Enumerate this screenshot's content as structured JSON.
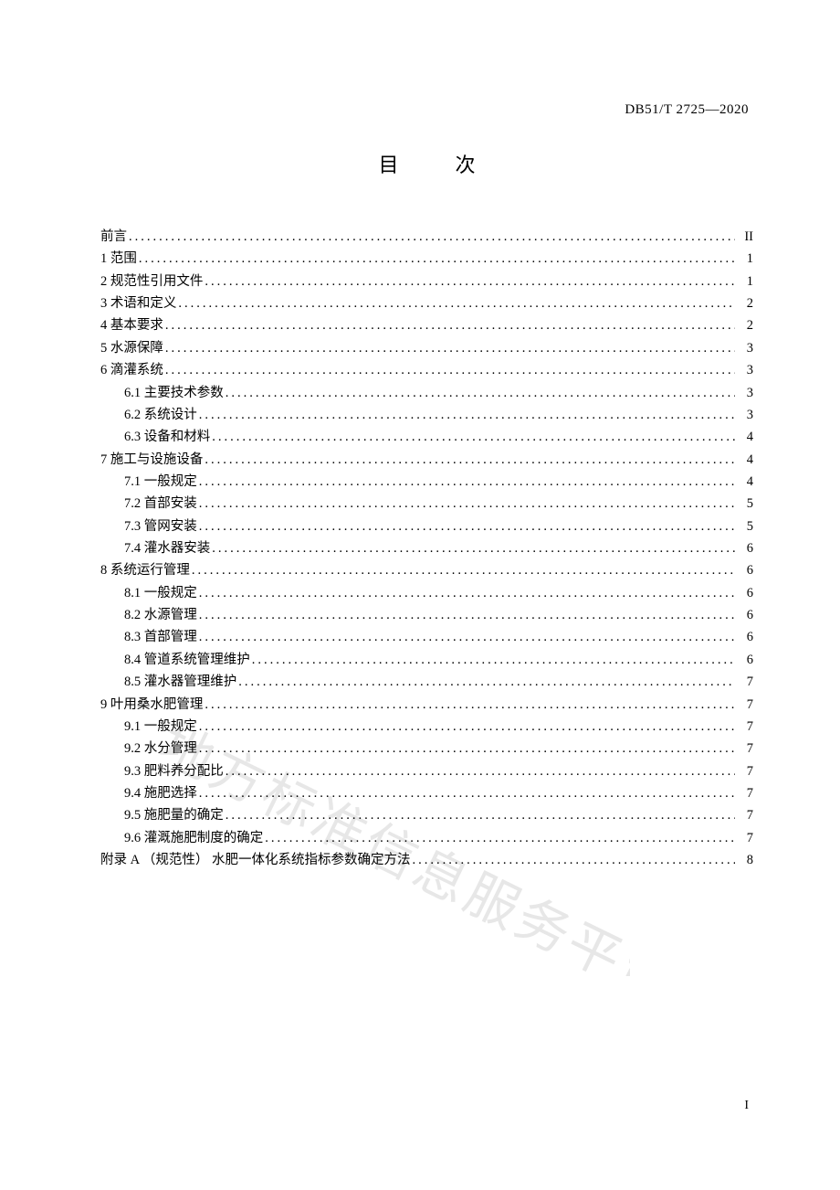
{
  "header": {
    "standard_code": "DB51/T 2725—2020"
  },
  "title": "目    次",
  "watermark_text": "地方标准信息服务平台",
  "page_number": "I",
  "toc": [
    {
      "level": 0,
      "label": "前言",
      "page": "II"
    },
    {
      "level": 0,
      "label": "1 范围",
      "page": "1"
    },
    {
      "level": 0,
      "label": "2 规范性引用文件",
      "page": "1"
    },
    {
      "level": 0,
      "label": "3 术语和定义",
      "page": "2"
    },
    {
      "level": 0,
      "label": "4 基本要求",
      "page": "2"
    },
    {
      "level": 0,
      "label": "5 水源保障",
      "page": "3"
    },
    {
      "level": 0,
      "label": "6 滴灌系统",
      "page": "3"
    },
    {
      "level": 1,
      "label": "6.1 主要技术参数",
      "page": "3"
    },
    {
      "level": 1,
      "label": "6.2 系统设计",
      "page": "3"
    },
    {
      "level": 1,
      "label": "6.3 设备和材料",
      "page": "4"
    },
    {
      "level": 0,
      "label": "7 施工与设施设备",
      "page": "4"
    },
    {
      "level": 1,
      "label": "7.1 一般规定",
      "page": "4"
    },
    {
      "level": 1,
      "label": "7.2 首部安装",
      "page": "5"
    },
    {
      "level": 1,
      "label": "7.3 管网安装",
      "page": "5"
    },
    {
      "level": 1,
      "label": "7.4 灌水器安装",
      "page": "6"
    },
    {
      "level": 0,
      "label": "8 系统运行管理",
      "page": "6"
    },
    {
      "level": 1,
      "label": "8.1 一般规定",
      "page": "6"
    },
    {
      "level": 1,
      "label": "8.2 水源管理",
      "page": "6"
    },
    {
      "level": 1,
      "label": "8.3 首部管理",
      "page": "6"
    },
    {
      "level": 1,
      "label": "8.4 管道系统管理维护",
      "page": "6"
    },
    {
      "level": 1,
      "label": "8.5 灌水器管理维护",
      "page": "7"
    },
    {
      "level": 0,
      "label": "9 叶用桑水肥管理",
      "page": "7"
    },
    {
      "level": 1,
      "label": "9.1 一般规定",
      "page": "7"
    },
    {
      "level": 1,
      "label": "9.2 水分管理",
      "page": "7"
    },
    {
      "level": 1,
      "label": "9.3 肥料养分配比",
      "page": "7"
    },
    {
      "level": 1,
      "label": "9.4 施肥选择",
      "page": "7"
    },
    {
      "level": 1,
      "label": "9.5 施肥量的确定",
      "page": "7"
    },
    {
      "level": 1,
      "label": "9.6 灌溉施肥制度的确定",
      "page": "7"
    },
    {
      "level": 0,
      "label": "附录 A （规范性） 水肥一体化系统指标参数确定方法",
      "page": "8"
    }
  ]
}
